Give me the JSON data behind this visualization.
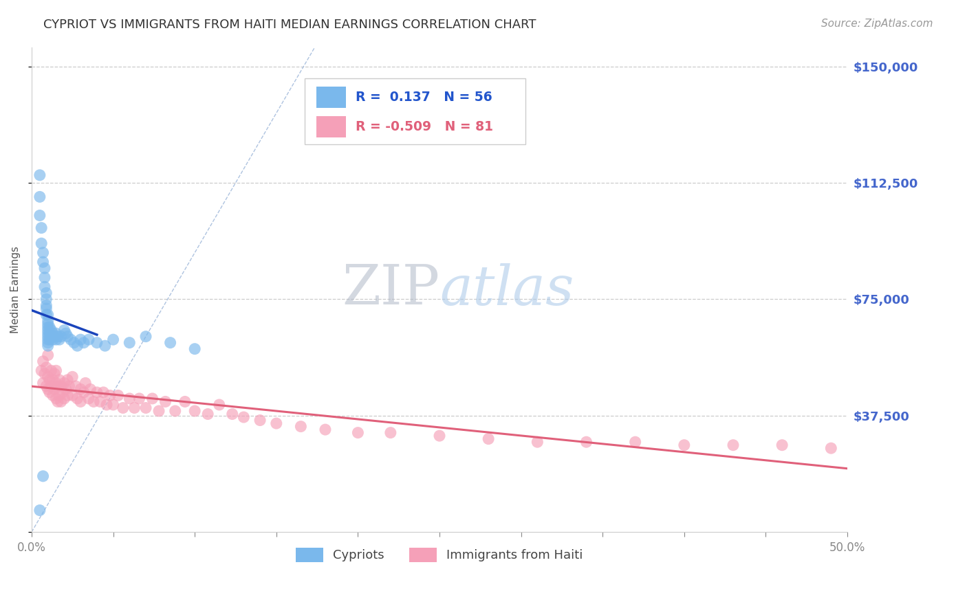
{
  "title": "CYPRIOT VS IMMIGRANTS FROM HAITI MEDIAN EARNINGS CORRELATION CHART",
  "source": "Source: ZipAtlas.com",
  "ylabel": "Median Earnings",
  "yticks": [
    0,
    37500,
    75000,
    112500,
    150000
  ],
  "ytick_labels": [
    "",
    "$37,500",
    "$75,000",
    "$112,500",
    "$150,000"
  ],
  "xmin": 0.0,
  "xmax": 0.5,
  "ymin": 0,
  "ymax": 156250,
  "cypriot_R": 0.137,
  "cypriot_N": 56,
  "haiti_R": -0.509,
  "haiti_N": 81,
  "cypriot_color": "#7ab8ec",
  "haiti_color": "#f5a0b8",
  "cypriot_line_color": "#1a44bb",
  "haiti_line_color": "#e0607a",
  "ref_line_color": "#9ab4d8",
  "title_color": "#333333",
  "axis_label_color": "#4466cc",
  "legend_label_color": "#2255cc",
  "watermark_zip": "ZIP",
  "watermark_atlas": "atlas",
  "background_color": "#ffffff",
  "cypriot_x": [
    0.005,
    0.005,
    0.005,
    0.006,
    0.006,
    0.007,
    0.007,
    0.008,
    0.008,
    0.008,
    0.009,
    0.009,
    0.009,
    0.009,
    0.009,
    0.01,
    0.01,
    0.01,
    0.01,
    0.01,
    0.01,
    0.01,
    0.01,
    0.01,
    0.01,
    0.011,
    0.011,
    0.011,
    0.012,
    0.012,
    0.013,
    0.013,
    0.014,
    0.015,
    0.015,
    0.016,
    0.017,
    0.018,
    0.02,
    0.021,
    0.022,
    0.024,
    0.026,
    0.028,
    0.03,
    0.032,
    0.035,
    0.04,
    0.045,
    0.05,
    0.06,
    0.07,
    0.085,
    0.1,
    0.005,
    0.007
  ],
  "cypriot_y": [
    115000,
    108000,
    102000,
    98000,
    93000,
    90000,
    87000,
    85000,
    82000,
    79000,
    77000,
    75000,
    73000,
    72000,
    70000,
    70000,
    68000,
    67000,
    66000,
    65000,
    64000,
    63000,
    62000,
    61000,
    60000,
    62000,
    64000,
    66000,
    63000,
    65000,
    64000,
    62000,
    63000,
    64000,
    62000,
    63000,
    62000,
    63000,
    65000,
    64000,
    63000,
    62000,
    61000,
    60000,
    62000,
    61000,
    62000,
    61000,
    60000,
    62000,
    61000,
    63000,
    61000,
    59000,
    7000,
    18000
  ],
  "haiti_x": [
    0.006,
    0.007,
    0.007,
    0.008,
    0.009,
    0.009,
    0.01,
    0.01,
    0.01,
    0.011,
    0.011,
    0.012,
    0.012,
    0.013,
    0.013,
    0.014,
    0.014,
    0.015,
    0.015,
    0.015,
    0.016,
    0.016,
    0.017,
    0.017,
    0.018,
    0.018,
    0.019,
    0.02,
    0.02,
    0.021,
    0.022,
    0.022,
    0.023,
    0.025,
    0.025,
    0.027,
    0.028,
    0.03,
    0.03,
    0.032,
    0.033,
    0.035,
    0.036,
    0.038,
    0.04,
    0.042,
    0.044,
    0.046,
    0.048,
    0.05,
    0.053,
    0.056,
    0.06,
    0.063,
    0.066,
    0.07,
    0.074,
    0.078,
    0.082,
    0.088,
    0.094,
    0.1,
    0.108,
    0.115,
    0.123,
    0.13,
    0.14,
    0.15,
    0.165,
    0.18,
    0.2,
    0.22,
    0.25,
    0.28,
    0.31,
    0.34,
    0.37,
    0.4,
    0.43,
    0.46,
    0.49
  ],
  "haiti_y": [
    52000,
    55000,
    48000,
    51000,
    53000,
    47000,
    50000,
    46000,
    57000,
    49000,
    45000,
    52000,
    47000,
    49000,
    44000,
    51000,
    46000,
    48000,
    43000,
    52000,
    47000,
    42000,
    49000,
    44000,
    47000,
    42000,
    45000,
    48000,
    43000,
    46000,
    49000,
    44000,
    47000,
    50000,
    44000,
    47000,
    43000,
    46000,
    42000,
    45000,
    48000,
    43000,
    46000,
    42000,
    45000,
    42000,
    45000,
    41000,
    44000,
    41000,
    44000,
    40000,
    43000,
    40000,
    43000,
    40000,
    43000,
    39000,
    42000,
    39000,
    42000,
    39000,
    38000,
    41000,
    38000,
    37000,
    36000,
    35000,
    34000,
    33000,
    32000,
    32000,
    31000,
    30000,
    29000,
    29000,
    29000,
    28000,
    28000,
    28000,
    27000
  ]
}
